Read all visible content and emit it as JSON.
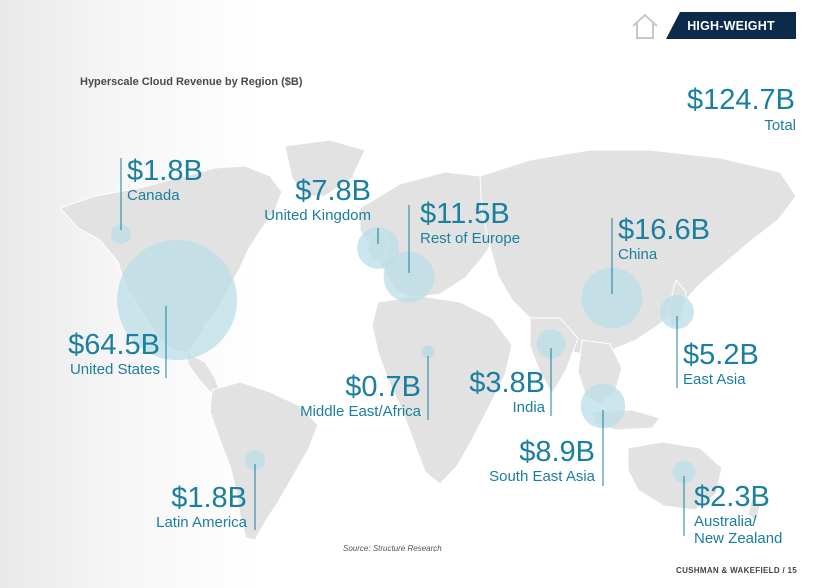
{
  "header": {
    "badge": "HIGH-WEIGHT",
    "home_icon": "home-icon"
  },
  "title": "Hyperscale Cloud Revenue by Region ($B)",
  "total": {
    "value": "$124.7B",
    "label": "Total"
  },
  "regions": [
    {
      "id": "canada",
      "value": "$1.8B",
      "name": "Canada",
      "amount": 1.8
    },
    {
      "id": "uk",
      "value": "$7.8B",
      "name": "United Kingdom",
      "amount": 7.8
    },
    {
      "id": "rest-europe",
      "value": "$11.5B",
      "name": "Rest of Europe",
      "amount": 11.5
    },
    {
      "id": "china",
      "value": "$16.6B",
      "name": "China",
      "amount": 16.6
    },
    {
      "id": "us",
      "value": "$64.5B",
      "name": "United States",
      "amount": 64.5
    },
    {
      "id": "east-asia",
      "value": "$5.2B",
      "name": "East Asia",
      "amount": 5.2
    },
    {
      "id": "mea",
      "value": "$0.7B",
      "name": "Middle East/Africa",
      "amount": 0.7
    },
    {
      "id": "india",
      "value": "$3.8B",
      "name": "India",
      "amount": 3.8
    },
    {
      "id": "sea",
      "value": "$8.9B",
      "name": "South East Asia",
      "amount": 8.9
    },
    {
      "id": "latam",
      "value": "$1.8B",
      "name": "Latin America",
      "amount": 1.8
    },
    {
      "id": "anz",
      "value": "$2.3B",
      "name": "Australia/",
      "name2": "New Zealand",
      "amount": 2.3
    }
  ],
  "source": "Source: Structure Research",
  "footer": "CUSHMAN & WAKEFIELD / 15",
  "colors": {
    "accent": "#1a7fa0",
    "bubble": "#b9dde6",
    "land": "#e2e2e2",
    "badge": "#0c2b4b"
  }
}
